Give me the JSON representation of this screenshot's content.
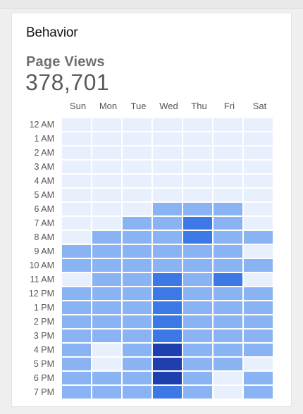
{
  "card": {
    "title": "Behavior",
    "metric_label": "Page Views",
    "metric_value": "378,701"
  },
  "days": [
    "Sun",
    "Mon",
    "Tue",
    "Wed",
    "Thu",
    "Fri",
    "Sat"
  ],
  "hours": [
    "12 AM",
    "1 AM",
    "2 AM",
    "3 AM",
    "4 AM",
    "5 AM",
    "6 AM",
    "7 AM",
    "8 AM",
    "9 AM",
    "10 AM",
    "11 AM",
    "12 PM",
    "1 PM",
    "2 PM",
    "3 PM",
    "4 PM",
    "5 PM",
    "6 PM",
    "7 PM"
  ],
  "palette": [
    "#e9f0fd",
    "#8ab3f4",
    "#3c79e6",
    "#1e3fad"
  ],
  "heatmap_levels": [
    [
      0,
      0,
      0,
      0,
      0,
      0,
      0
    ],
    [
      0,
      0,
      0,
      0,
      0,
      0,
      0
    ],
    [
      0,
      0,
      0,
      0,
      0,
      0,
      0
    ],
    [
      0,
      0,
      0,
      0,
      0,
      0,
      0
    ],
    [
      0,
      0,
      0,
      0,
      0,
      0,
      0
    ],
    [
      0,
      0,
      0,
      0,
      0,
      0,
      0
    ],
    [
      0,
      0,
      0,
      1,
      1,
      1,
      0
    ],
    [
      0,
      0,
      1,
      1,
      2,
      1,
      0
    ],
    [
      0,
      1,
      1,
      1,
      2,
      1,
      1
    ],
    [
      1,
      1,
      1,
      1,
      1,
      1,
      0
    ],
    [
      1,
      1,
      1,
      1,
      1,
      1,
      1
    ],
    [
      0,
      1,
      1,
      2,
      1,
      2,
      0
    ],
    [
      1,
      1,
      1,
      2,
      1,
      1,
      1
    ],
    [
      1,
      1,
      1,
      2,
      1,
      1,
      1
    ],
    [
      1,
      1,
      1,
      2,
      1,
      1,
      1
    ],
    [
      1,
      1,
      1,
      2,
      1,
      1,
      1
    ],
    [
      1,
      0,
      1,
      3,
      1,
      1,
      1
    ],
    [
      1,
      0,
      1,
      3,
      1,
      1,
      0
    ],
    [
      1,
      1,
      1,
      3,
      1,
      0,
      1
    ],
    [
      1,
      1,
      1,
      2,
      1,
      0,
      1
    ]
  ]
}
